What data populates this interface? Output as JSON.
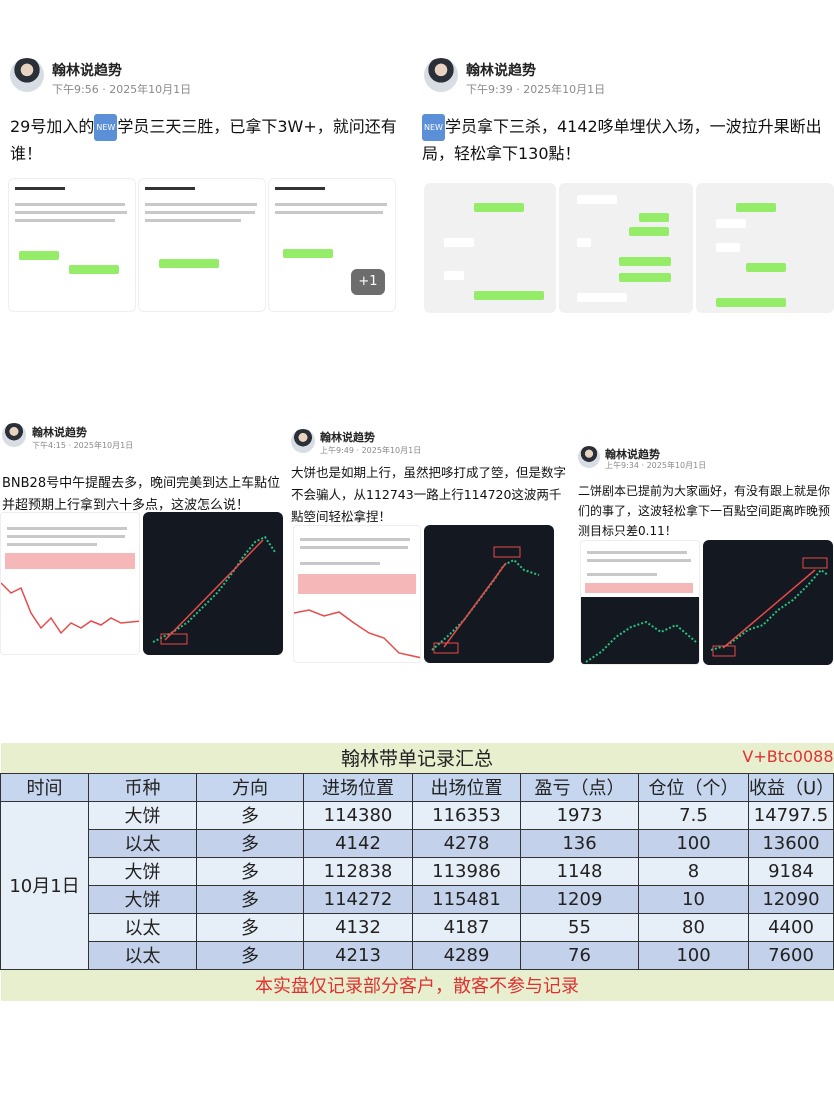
{
  "posts": [
    {
      "author": "翰林说趋势",
      "time": "下午9:56 · 2025年10月1日",
      "text_before": "29号加入的",
      "badge": "NEW",
      "text_after": "学员三天三胜，已拿下3W+，就问还有谁！",
      "more_count": "+1"
    },
    {
      "author": "翰林说趋势",
      "time": "下午9:39 · 2025年10月1日",
      "text_before": "",
      "badge": "NEW",
      "text_after": "学员拿下三杀，4142哆单埋伏入场，一波拉升果断出局，轻松拿下130點！"
    },
    {
      "author": "翰林说趋势",
      "time": "下午4:15 · 2025年10月1日",
      "text": "BNB28号中午提醒去多，晚间完美到达上车點位并超预期上行拿到六十多点，这波怎么说！"
    },
    {
      "author": "翰林说趋势",
      "time": "上午9:49 · 2025年10月1日",
      "text": "大饼也是如期上行，虽然把哆打成了箜，但是数字不会骗人，从112743一路上行114720这波两千點箜间轻松拿捏！"
    },
    {
      "author": "翰林说趋势",
      "time": "上午9:34 · 2025年10月1日",
      "text": "二饼剧本已提前为大家画好，有没有跟上就是你们的事了，这波轻松拿下一百點空间距离昨晚预测目标只差0.11！"
    }
  ],
  "table": {
    "title": "翰林带单记录汇总",
    "code": "V+Btc0088",
    "headers": [
      "时间",
      "币种",
      "方向",
      "进场位置",
      "出场位置",
      "盈亏（点）",
      "仓位（个）",
      "收益（U）"
    ],
    "date": "10月1日",
    "rows": [
      [
        "大饼",
        "多",
        "114380",
        "116353",
        "1973",
        "7.5",
        "14797.5"
      ],
      [
        "以太",
        "多",
        "4142",
        "4278",
        "136",
        "100",
        "13600"
      ],
      [
        "大饼",
        "多",
        "112838",
        "113986",
        "1148",
        "8",
        "9184"
      ],
      [
        "大饼",
        "多",
        "114272",
        "115481",
        "1209",
        "10",
        "12090"
      ],
      [
        "以太",
        "多",
        "4132",
        "4187",
        "55",
        "80",
        "4400"
      ],
      [
        "以太",
        "多",
        "4213",
        "4289",
        "76",
        "100",
        "7600"
      ]
    ],
    "footer": "本实盘仅记录部分客户，散客不参与记录"
  },
  "colors": {
    "up": "#26c281",
    "down": "#e84a4a",
    "note": "#e03030",
    "header_bg": "#c6d6ee",
    "title_bg": "#e8efcf"
  }
}
